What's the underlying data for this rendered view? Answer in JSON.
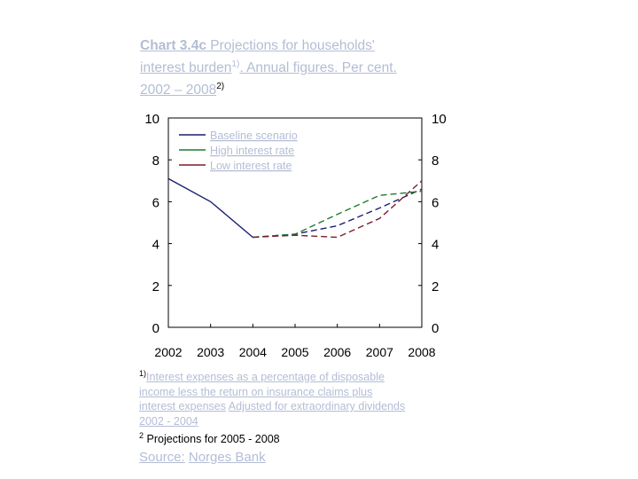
{
  "title": {
    "label": "Chart 3.4c",
    "text1": " Projections for households'",
    "text2": "interest burden",
    "sup1": "1)",
    "text3": ". Annual figures. Per cent.",
    "text4": "2002 – 2008",
    "sup2": "2)"
  },
  "chart_data": {
    "type": "line",
    "x": [
      2002,
      2003,
      2004,
      2005,
      2006,
      2007,
      2008
    ],
    "ylim": [
      0,
      10
    ],
    "yticks": [
      0,
      2,
      4,
      6,
      8,
      10
    ],
    "grid": false,
    "legend_position": "top-left",
    "series": [
      {
        "name": "Baseline scenario",
        "color": "#1a1f6e",
        "style": "solid",
        "points": [
          [
            2002,
            7.1
          ],
          [
            2003,
            6.0
          ],
          [
            2004,
            4.3
          ]
        ]
      },
      {
        "name": "Baseline scenario",
        "color": "#1a1f6e",
        "style": "dashed",
        "points": [
          [
            2004,
            4.3
          ],
          [
            2005,
            4.45
          ],
          [
            2006,
            4.85
          ],
          [
            2007,
            5.7
          ],
          [
            2008,
            6.6
          ]
        ]
      },
      {
        "name": "High interest rate",
        "color": "#1f7a2e",
        "style": "dashed",
        "points": [
          [
            2004,
            4.3
          ],
          [
            2005,
            4.45
          ],
          [
            2006,
            5.4
          ],
          [
            2007,
            6.3
          ],
          [
            2008,
            6.5
          ]
        ]
      },
      {
        "name": "Low interest rate",
        "color": "#7a1f2a",
        "style": "dashed",
        "points": [
          [
            2004,
            4.3
          ],
          [
            2005,
            4.4
          ],
          [
            2006,
            4.3
          ],
          [
            2007,
            5.2
          ],
          [
            2008,
            7.0
          ]
        ]
      }
    ],
    "legend": [
      "Baseline scenario",
      "High interest rate",
      "Low interest rate"
    ]
  },
  "footnotes": {
    "n1_marker": "1)",
    "n1_line1": "Interest expenses as a percentage of disposable",
    "n1_line2": "income less the return on insurance claims plus",
    "n1_line3a": "interest expenses",
    "n1_line3b": "Adjusted for extraordinary dividends",
    "n1_line4": "2002 - 2004",
    "n2_marker": "2",
    "n2_text": "Projections for 2005 - 2008"
  },
  "source": {
    "label": "Source:",
    "text": "Norges Bank"
  }
}
